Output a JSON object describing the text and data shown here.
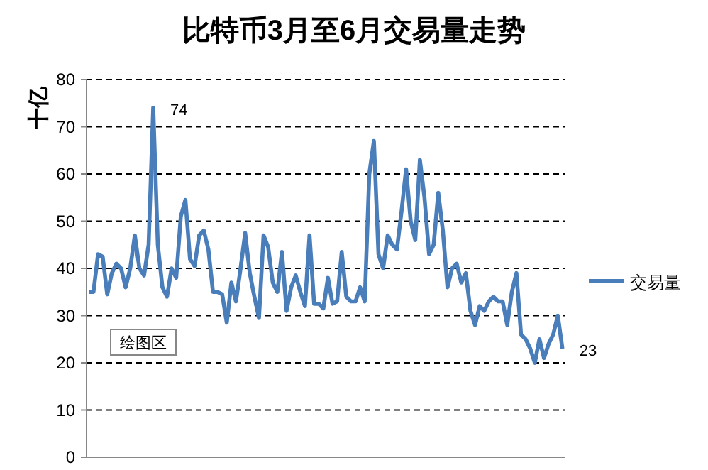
{
  "chart_data": {
    "type": "line",
    "title": "比特币3月至6月交易量走势",
    "ylabel": "十亿",
    "categories": [
      null,
      null,
      null,
      null,
      null,
      null,
      null,
      null,
      null,
      null,
      null,
      null,
      null,
      null,
      null,
      null,
      null,
      null,
      null,
      null,
      null,
      null,
      null,
      null,
      null,
      null,
      null,
      null,
      null,
      null,
      null,
      null,
      null,
      null,
      null,
      null,
      null,
      null,
      null,
      null,
      null,
      null,
      null,
      null,
      null,
      null,
      null,
      null,
      null,
      null,
      null,
      null,
      null,
      null,
      null,
      null,
      null,
      null,
      null,
      null,
      null,
      null,
      null,
      null,
      null,
      null,
      null,
      null,
      null,
      null,
      null,
      null,
      null,
      null,
      null,
      null,
      null,
      null,
      null,
      null,
      null,
      null,
      null,
      null,
      null,
      null,
      null,
      null,
      null,
      null,
      null,
      null,
      null,
      null,
      null,
      null,
      null,
      null,
      null,
      null,
      null,
      null,
      null,
      null
    ],
    "series": [
      {
        "name": "交易量",
        "color": "#4a7ebb",
        "values": [
          35,
          35,
          43,
          42.5,
          34.5,
          39,
          41,
          40,
          36,
          40,
          47,
          40,
          38.5,
          45,
          74,
          45,
          36,
          34,
          40,
          38,
          51,
          54.5,
          42,
          40.5,
          47,
          48,
          44,
          35,
          35,
          34.5,
          28.5,
          37,
          33,
          40,
          47.5,
          39,
          34,
          29.5,
          47,
          44.5,
          37,
          35,
          43.5,
          31,
          36,
          38.5,
          35,
          32,
          47,
          32.5,
          32.5,
          31.5,
          38,
          32.5,
          33,
          43.5,
          34,
          33,
          33,
          36,
          33,
          60,
          67,
          43,
          40,
          47,
          45,
          44,
          52,
          61,
          50,
          46,
          63,
          55,
          43,
          45,
          56,
          48,
          36,
          40,
          41,
          37,
          39,
          31,
          28,
          32,
          31,
          33,
          34,
          33,
          33,
          28,
          35,
          39,
          26,
          25,
          23,
          20,
          25,
          21,
          24,
          26,
          30,
          23
        ],
        "value_labels": [
          null,
          null,
          null,
          null,
          null,
          null,
          null,
          null,
          null,
          null,
          null,
          null,
          null,
          null,
          "74",
          null,
          null,
          null,
          null,
          null,
          null,
          null,
          null,
          null,
          null,
          null,
          null,
          null,
          null,
          null,
          null,
          null,
          null,
          null,
          null,
          null,
          null,
          null,
          null,
          null,
          null,
          null,
          null,
          null,
          null,
          null,
          null,
          null,
          null,
          null,
          null,
          null,
          null,
          null,
          null,
          null,
          null,
          null,
          null,
          null,
          null,
          null,
          null,
          null,
          null,
          null,
          null,
          null,
          null,
          null,
          null,
          null,
          null,
          null,
          null,
          null,
          null,
          null,
          null,
          null,
          null,
          null,
          null,
          null,
          null,
          null,
          null,
          null,
          null,
          null,
          null,
          null,
          null,
          null,
          null,
          null,
          null,
          null,
          null,
          null,
          null,
          null,
          null,
          "23"
        ]
      }
    ],
    "ylim": [
      0,
      80
    ],
    "yticks": [
      0,
      10,
      20,
      30,
      40,
      50,
      60,
      70,
      80
    ],
    "grid": "y",
    "line_style": "solid",
    "marker": "none",
    "legend": "right",
    "annotations": [
      "绘图区"
    ]
  }
}
